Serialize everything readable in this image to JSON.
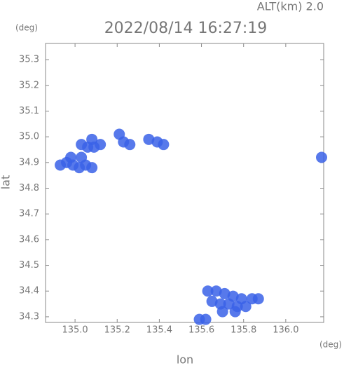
{
  "chart_data": {
    "type": "scatter",
    "title": "2022/08/14 16:27:19",
    "subtitle": "ALT(km)  2.0",
    "y_unit": "(deg)",
    "x_unit": "(deg)",
    "xlabel": "lon",
    "ylabel": "lat",
    "color": "#3a62e8",
    "xlim": [
      134.86,
      136.18
    ],
    "ylim": [
      34.278,
      35.363
    ],
    "xticks": [
      {
        "value": 135.0,
        "label": "135.0"
      },
      135.2,
      135.4,
      135.6,
      135.8,
      {
        "value": 136.0,
        "label": "136.0"
      }
    ],
    "yticks": [
      34.3,
      34.4,
      34.5,
      34.6,
      34.7,
      34.8,
      34.9,
      {
        "value": 35.0,
        "label": "35.0"
      },
      35.1,
      35.2,
      35.3
    ],
    "x": [
      134.93,
      134.96,
      134.99,
      135.02,
      135.05,
      135.08,
      134.98,
      135.03,
      135.03,
      135.06,
      135.09,
      135.12,
      135.08,
      135.23,
      135.26,
      135.21,
      135.35,
      135.39,
      135.42,
      135.63,
      135.67,
      135.71,
      135.75,
      135.79,
      135.84,
      135.87,
      135.65,
      135.69,
      135.73,
      135.77,
      135.81,
      135.7,
      135.76,
      135.59,
      135.62,
      136.17
    ],
    "y": [
      34.89,
      34.9,
      34.89,
      34.88,
      34.89,
      34.88,
      34.92,
      34.92,
      34.97,
      34.96,
      34.96,
      34.97,
      34.99,
      34.98,
      34.97,
      35.01,
      34.99,
      34.98,
      34.97,
      34.4,
      34.4,
      34.39,
      34.38,
      34.37,
      34.37,
      34.37,
      34.36,
      34.35,
      34.35,
      34.34,
      34.34,
      34.32,
      34.32,
      34.29,
      34.29,
      34.92
    ]
  }
}
